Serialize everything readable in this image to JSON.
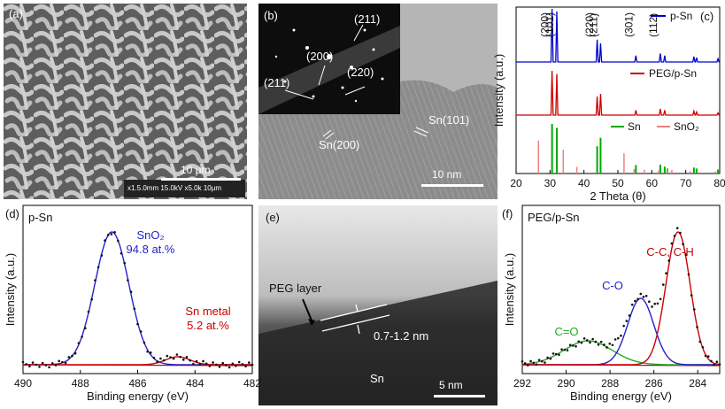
{
  "panels": {
    "a": {
      "label": "(a)",
      "scale_text": "10 μm",
      "sem_info": "x1.5.0mm 15.0kV x5.0k 10μm"
    },
    "b": {
      "label": "(b)",
      "saed_labels": [
        "(211)",
        "(200)",
        "(220)",
        "(211)"
      ],
      "lattice_labels": [
        "Sn(200)",
        "Sn(101)"
      ],
      "scale_text": "10 nm"
    },
    "e": {
      "label": "(e)",
      "peg_label": "PEG layer",
      "thickness_label": "0.7-1.2 nm",
      "sn_label": "Sn",
      "scale_text": "5 nm"
    }
  },
  "chart_data": [
    {
      "panel": "(c)",
      "type": "line",
      "xlabel": "2 Theta (θ)",
      "ylabel": "Intensity (a.u.)",
      "xlim": [
        20,
        80
      ],
      "xticks": [
        20,
        30,
        40,
        50,
        60,
        70,
        80
      ],
      "peak_labels": [
        "(200)",
        "(101)",
        "(220)",
        "(211)",
        "(301)",
        "(112)"
      ],
      "peak_label_x": [
        30.6,
        32.0,
        43.8,
        44.9,
        55.3,
        62.5
      ],
      "series": [
        {
          "name": "p-Sn",
          "color": "#0000cc",
          "peaks": [
            [
              30.6,
              1.0
            ],
            [
              32.0,
              0.95
            ],
            [
              43.9,
              0.42
            ],
            [
              44.9,
              0.35
            ],
            [
              55.3,
              0.12
            ],
            [
              62.5,
              0.16
            ],
            [
              63.8,
              0.12
            ],
            [
              72.4,
              0.1
            ],
            [
              73.2,
              0.08
            ],
            [
              79.5,
              0.06
            ]
          ]
        },
        {
          "name": "PEG/p-Sn",
          "color": "#cc0000",
          "peaks": [
            [
              30.6,
              1.0
            ],
            [
              32.0,
              0.93
            ],
            [
              43.9,
              0.42
            ],
            [
              44.9,
              0.48
            ],
            [
              55.3,
              0.11
            ],
            [
              62.5,
              0.14
            ],
            [
              63.8,
              0.11
            ],
            [
              72.4,
              0.09
            ],
            [
              73.2,
              0.07
            ],
            [
              79.5,
              0.05
            ]
          ]
        },
        {
          "name": "Sn",
          "color": "#00aa00",
          "peaks": [
            [
              30.6,
              1.0
            ],
            [
              32.0,
              0.92
            ],
            [
              43.9,
              0.55
            ],
            [
              44.9,
              0.72
            ],
            [
              55.3,
              0.17
            ],
            [
              62.5,
              0.18
            ],
            [
              63.8,
              0.14
            ],
            [
              64.6,
              0.1
            ],
            [
              72.4,
              0.12
            ],
            [
              73.2,
              0.1
            ],
            [
              79.5,
              0.08
            ]
          ]
        },
        {
          "name": "SnO₂",
          "color": "#f08080",
          "peaks": [
            [
              26.6,
              0.9
            ],
            [
              33.9,
              0.65
            ],
            [
              37.9,
              0.18
            ],
            [
              51.8,
              0.55
            ],
            [
              54.8,
              0.12
            ],
            [
              57.8,
              0.1
            ],
            [
              61.9,
              0.08
            ],
            [
              64.7,
              0.12
            ],
            [
              65.9,
              0.1
            ],
            [
              71.3,
              0.06
            ],
            [
              78.7,
              0.06
            ]
          ]
        }
      ]
    },
    {
      "panel": "(d)",
      "title": "p-Sn",
      "type": "line",
      "xlabel": "Binding energy (eV)",
      "ylabel": "Intensity (a.u.)",
      "xlim": [
        490,
        482
      ],
      "xticks": [
        490,
        488,
        486,
        484,
        482
      ],
      "annotations": [
        {
          "text": "SnO₂",
          "color": "#2222cc"
        },
        {
          "text": "94.8 at.%",
          "color": "#2222cc"
        },
        {
          "text": "Sn metal",
          "color": "#cc0000"
        },
        {
          "text": "5.2 at.%",
          "color": "#cc0000"
        }
      ],
      "series": [
        {
          "name": "SnO₂ fit",
          "color": "#2222cc",
          "center": 486.9,
          "fwhm": 1.4,
          "height": 1.0
        },
        {
          "name": "Sn metal fit",
          "color": "#cc0000",
          "center": 484.6,
          "fwhm": 1.0,
          "height": 0.06
        }
      ]
    },
    {
      "panel": "(f)",
      "title": "PEG/p-Sn",
      "type": "line",
      "xlabel": "Binding energy (eV)",
      "ylabel": "Intensity (a.u.)",
      "xlim": [
        292,
        283
      ],
      "xticks": [
        292,
        290,
        288,
        286,
        284
      ],
      "annotations": [
        {
          "text": "C=O",
          "color": "#22aa22"
        },
        {
          "text": "C-O",
          "color": "#2222cc"
        },
        {
          "text": "C-C, C-H",
          "color": "#cc0000"
        }
      ],
      "series": [
        {
          "name": "C=O",
          "color": "#22aa22",
          "center": 289.0,
          "fwhm": 2.6,
          "height": 0.18
        },
        {
          "name": "C-O",
          "color": "#2222cc",
          "center": 286.6,
          "fwhm": 1.4,
          "height": 0.5
        },
        {
          "name": "C-C, C-H",
          "color": "#cc0000",
          "center": 284.9,
          "fwhm": 1.3,
          "height": 1.0
        }
      ]
    }
  ]
}
